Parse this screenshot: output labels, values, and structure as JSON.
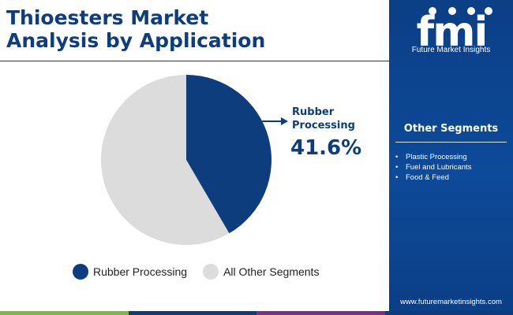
{
  "header": {
    "title_line1": "Thioesters Market",
    "title_line2": "Analysis by Application"
  },
  "chart_data": {
    "type": "pie",
    "title": "Thioesters Market Analysis by Application",
    "slices": [
      {
        "label": "Rubber Processing",
        "value": 41.6,
        "color": "#0d3d7c"
      },
      {
        "label": "All Other Segments",
        "value": 58.4,
        "color": "#dcdcdc"
      }
    ],
    "callout": {
      "label": "Rubber Processing",
      "value_text": "41.6%"
    },
    "legend": {
      "placement": "bottom"
    }
  },
  "legend": {
    "items": [
      {
        "label": "Rubber Processing",
        "color": "#0d3d7c"
      },
      {
        "label": "All Other Segments",
        "color": "#dcdcdc"
      }
    ]
  },
  "sidebar": {
    "logo_text": "fmi",
    "brand": "Future Market Insights",
    "title": "Other Segments",
    "items": [
      "Plastic Processing",
      "Fuel and Lubricants",
      "Food & Feed"
    ],
    "url": "www.futuremarketinsights.com"
  },
  "colors": {
    "primary": "#0d3d7c",
    "other": "#dcdcdc",
    "bottom_bar": [
      "#7dbb42",
      "#0d3d7c",
      "#7a2f8f",
      "#0d3d7c"
    ]
  }
}
